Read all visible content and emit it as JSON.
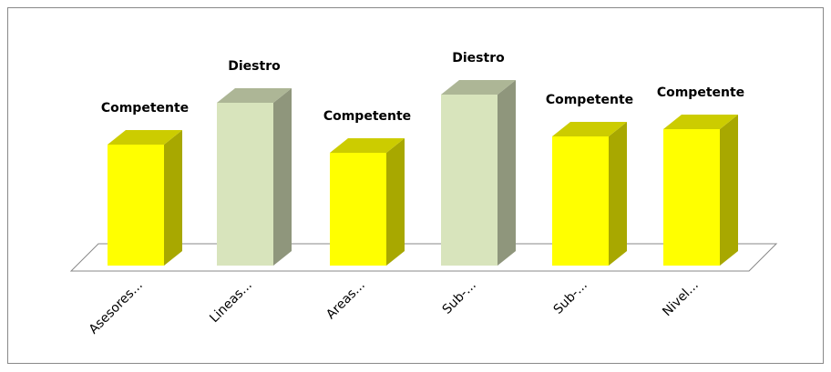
{
  "chart_data": {
    "type": "bar3d",
    "categories": [
      "Asesores...",
      "Lineas...",
      "Areas...",
      "Sub-...",
      "Sub-...",
      "Nivel..."
    ],
    "values": [
      133,
      179,
      124,
      188,
      142,
      150
    ],
    "value_labels": [
      "Competente",
      "Diestro",
      "Competente",
      "Diestro",
      "Competente",
      "Competente"
    ],
    "colors": [
      "#ffff00",
      "#d8e4bc",
      "#ffff00",
      "#d8e4bc",
      "#ffff00",
      "#ffff00"
    ],
    "ylim": [
      0,
      200
    ]
  }
}
